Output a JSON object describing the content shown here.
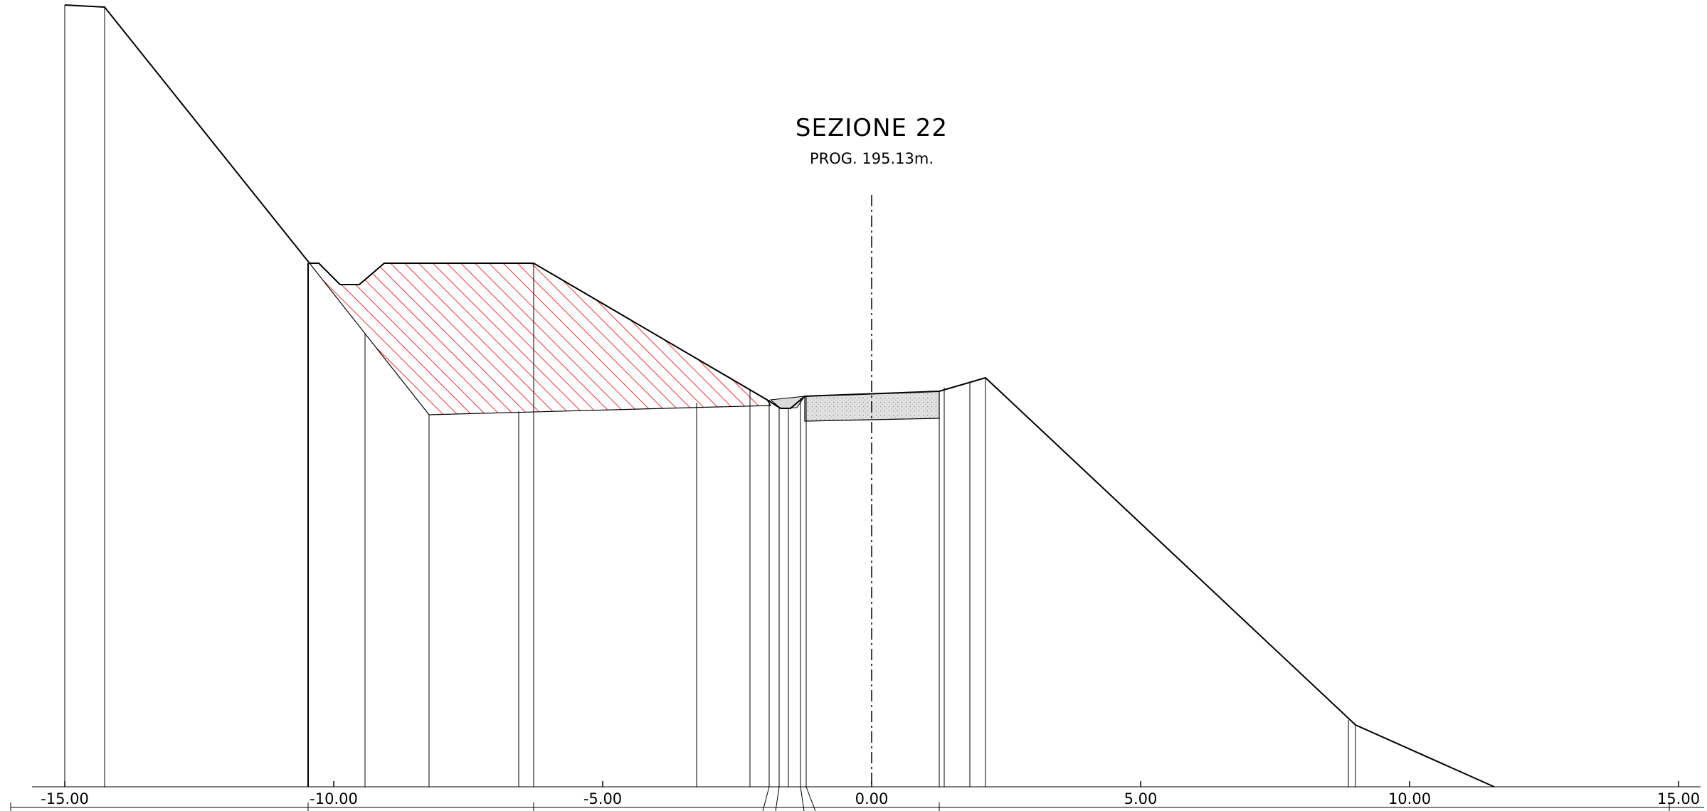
{
  "section": {
    "title": "SEZIONE 22",
    "progressive": "PROG. 195.13m."
  },
  "axis": {
    "min": -15,
    "max": 15,
    "ticks": [
      {
        "value": -15,
        "label": "-15.00"
      },
      {
        "value": -10,
        "label": "-10.00"
      },
      {
        "value": -5,
        "label": "-5.00"
      },
      {
        "value": 0,
        "label": "0.00"
      },
      {
        "value": 5,
        "label": "5.00"
      },
      {
        "value": 10,
        "label": "10.00"
      },
      {
        "value": 15,
        "label": "15.00"
      }
    ]
  },
  "colors": {
    "line": "#000000",
    "cut_hatch": "#e8000b",
    "pavement_fill": "#d8d8d8"
  }
}
